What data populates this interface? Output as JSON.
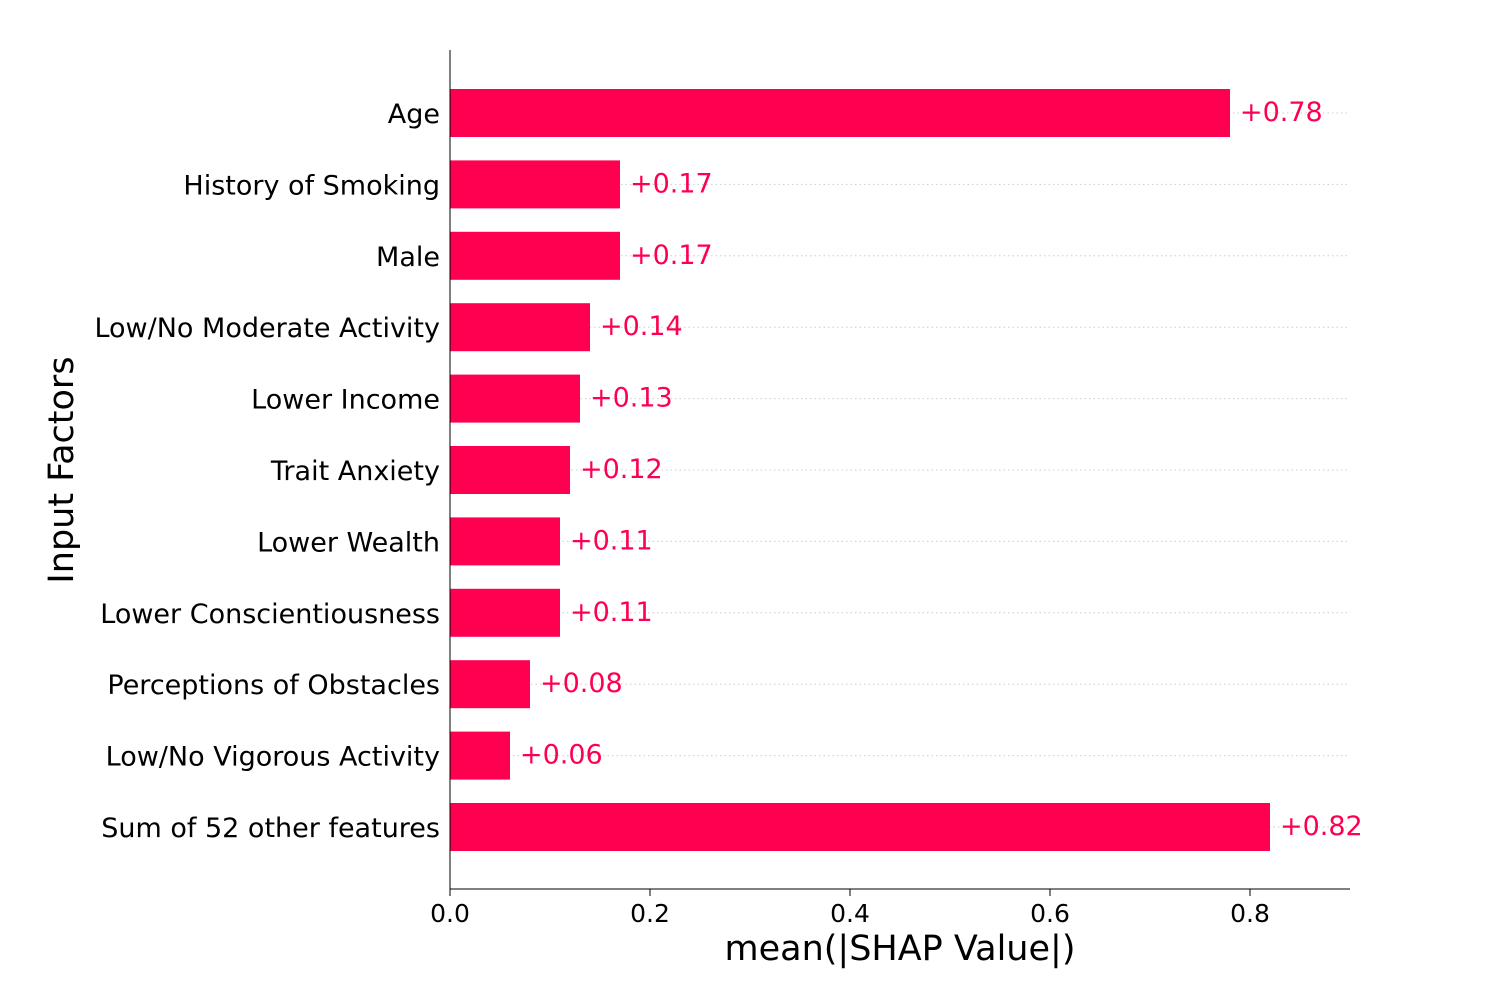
{
  "chart_data": {
    "type": "bar",
    "orientation": "horizontal",
    "categories": [
      "Age",
      "History of Smoking",
      "Male",
      "Low/No Moderate Activity",
      "Lower Income",
      "Trait Anxiety",
      "Lower Wealth",
      "Lower Conscientiousness",
      "Perceptions of Obstacles",
      "Low/No Vigorous Activity",
      "Sum of 52 other features"
    ],
    "values": [
      0.78,
      0.17,
      0.17,
      0.14,
      0.13,
      0.12,
      0.11,
      0.11,
      0.08,
      0.06,
      0.82
    ],
    "value_labels": [
      "+0.78",
      "+0.17",
      "+0.17",
      "+0.14",
      "+0.13",
      "+0.12",
      "+0.11",
      "+0.11",
      "+0.08",
      "+0.06",
      "+0.82"
    ],
    "xlabel": "mean(|SHAP Value|)",
    "ylabel": "Input Factors",
    "xlim": [
      0,
      0.9
    ],
    "xticks": [
      0.0,
      0.2,
      0.4,
      0.6,
      0.8
    ],
    "xtick_labels": [
      "0.0",
      "0.2",
      "0.4",
      "0.6",
      "0.8"
    ],
    "grid": "horizontal dotted lines",
    "colors": {
      "bar": "#ff0051",
      "label": "#ff0051",
      "axis": "#000000",
      "grid": "#cccccc"
    }
  }
}
